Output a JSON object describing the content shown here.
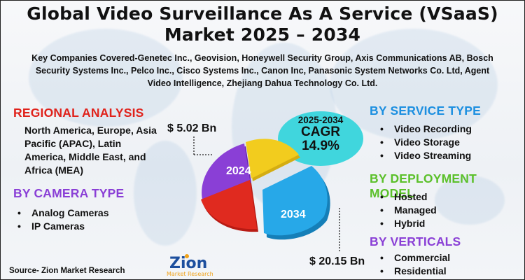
{
  "title_line1": "Global Video Surveillance As A Service (VSaaS)",
  "title_line2": "Market 2025 – 2034",
  "companies": "Key Companies Covered-Genetec Inc., Geovision, Honeywell Security Group, Axis Communications AB, Bosch Security Systems Inc., Pelco Inc., Cisco Systems Inc., Canon Inc, Panasonic System Networks Co. Ltd, Agent Video Intelligence, Zhejiang Dahua Technology Co. Ltd.",
  "regional": {
    "heading": "REGIONAL ANALYSIS",
    "text": "North America, Europe, Asia Pacific (APAC), Latin America, Middle East, and Africa (MEA)"
  },
  "camera": {
    "heading": "BY CAMERA TYPE",
    "items": [
      "Analog Cameras",
      "IP Cameras"
    ]
  },
  "service": {
    "heading": "BY SERVICE TYPE",
    "items": [
      "Video Recording",
      "Video Storage",
      "Video Streaming"
    ]
  },
  "deployment": {
    "heading": "BY DEPLOYMENT MODEL",
    "items": [
      "Hosted",
      "Managed",
      "Hybrid"
    ]
  },
  "verticals": {
    "heading": "BY VERTICALS",
    "items": [
      "Commercial",
      "Residential"
    ]
  },
  "cagr": {
    "years": "2025-2034",
    "label": "CAGR",
    "value": "14.9%"
  },
  "value_2024": "$ 5.02 Bn",
  "value_2034": "$ 20.15 Bn",
  "year_2024": "2024",
  "year_2034": "2034",
  "source": "Source- Zion Market Research",
  "logo": {
    "name": "Zion",
    "sub": "Market Research"
  },
  "colors": {
    "red": "#e0221b",
    "purple": "#8a3fd6",
    "blue": "#1c8fe0",
    "green": "#5bc02a",
    "cagr_bubble": "#40d6dd",
    "slice_yellow": "#f2cc1e",
    "slice_purple": "#7a2fc4",
    "slice_red": "#e02a1f",
    "slice_blue": "#27a8e8"
  }
}
